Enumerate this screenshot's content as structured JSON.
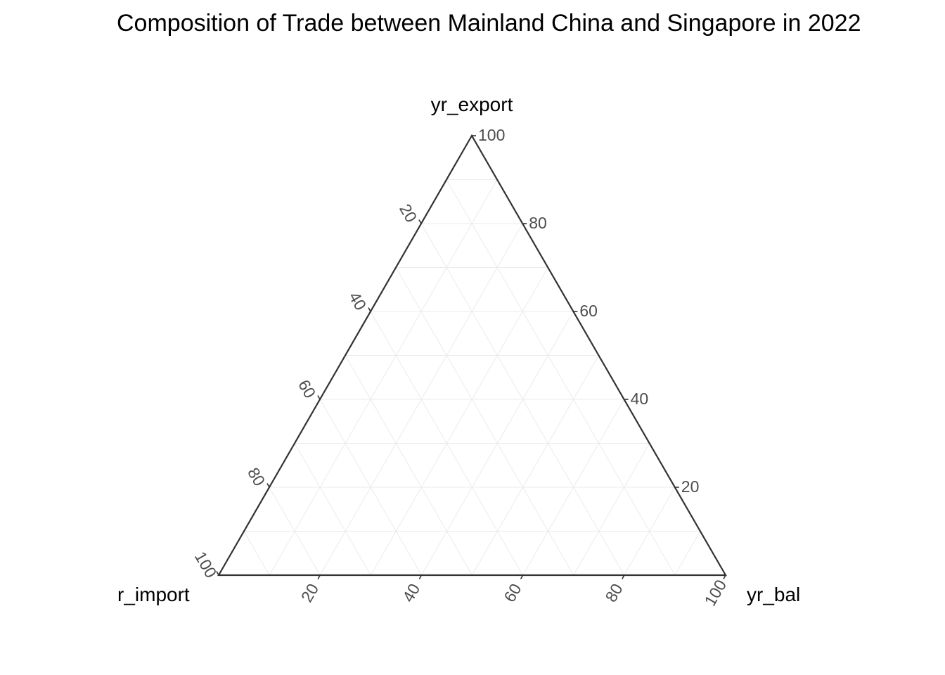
{
  "chart_data": {
    "type": "ternary",
    "title": "Composition of Trade between Mainland China and Singapore in 2022",
    "axes": {
      "top": {
        "label": "yr_export"
      },
      "left": {
        "label": "r_import"
      },
      "right": {
        "label": "yr_bal"
      }
    },
    "ticks": [
      20,
      40,
      60,
      80,
      100
    ],
    "range": [
      0,
      100
    ],
    "grid": true,
    "points": []
  },
  "colors": {
    "border": "#333333",
    "grid": "#ebebeb",
    "tick_text": "#4d4d4d",
    "text": "#000000"
  }
}
